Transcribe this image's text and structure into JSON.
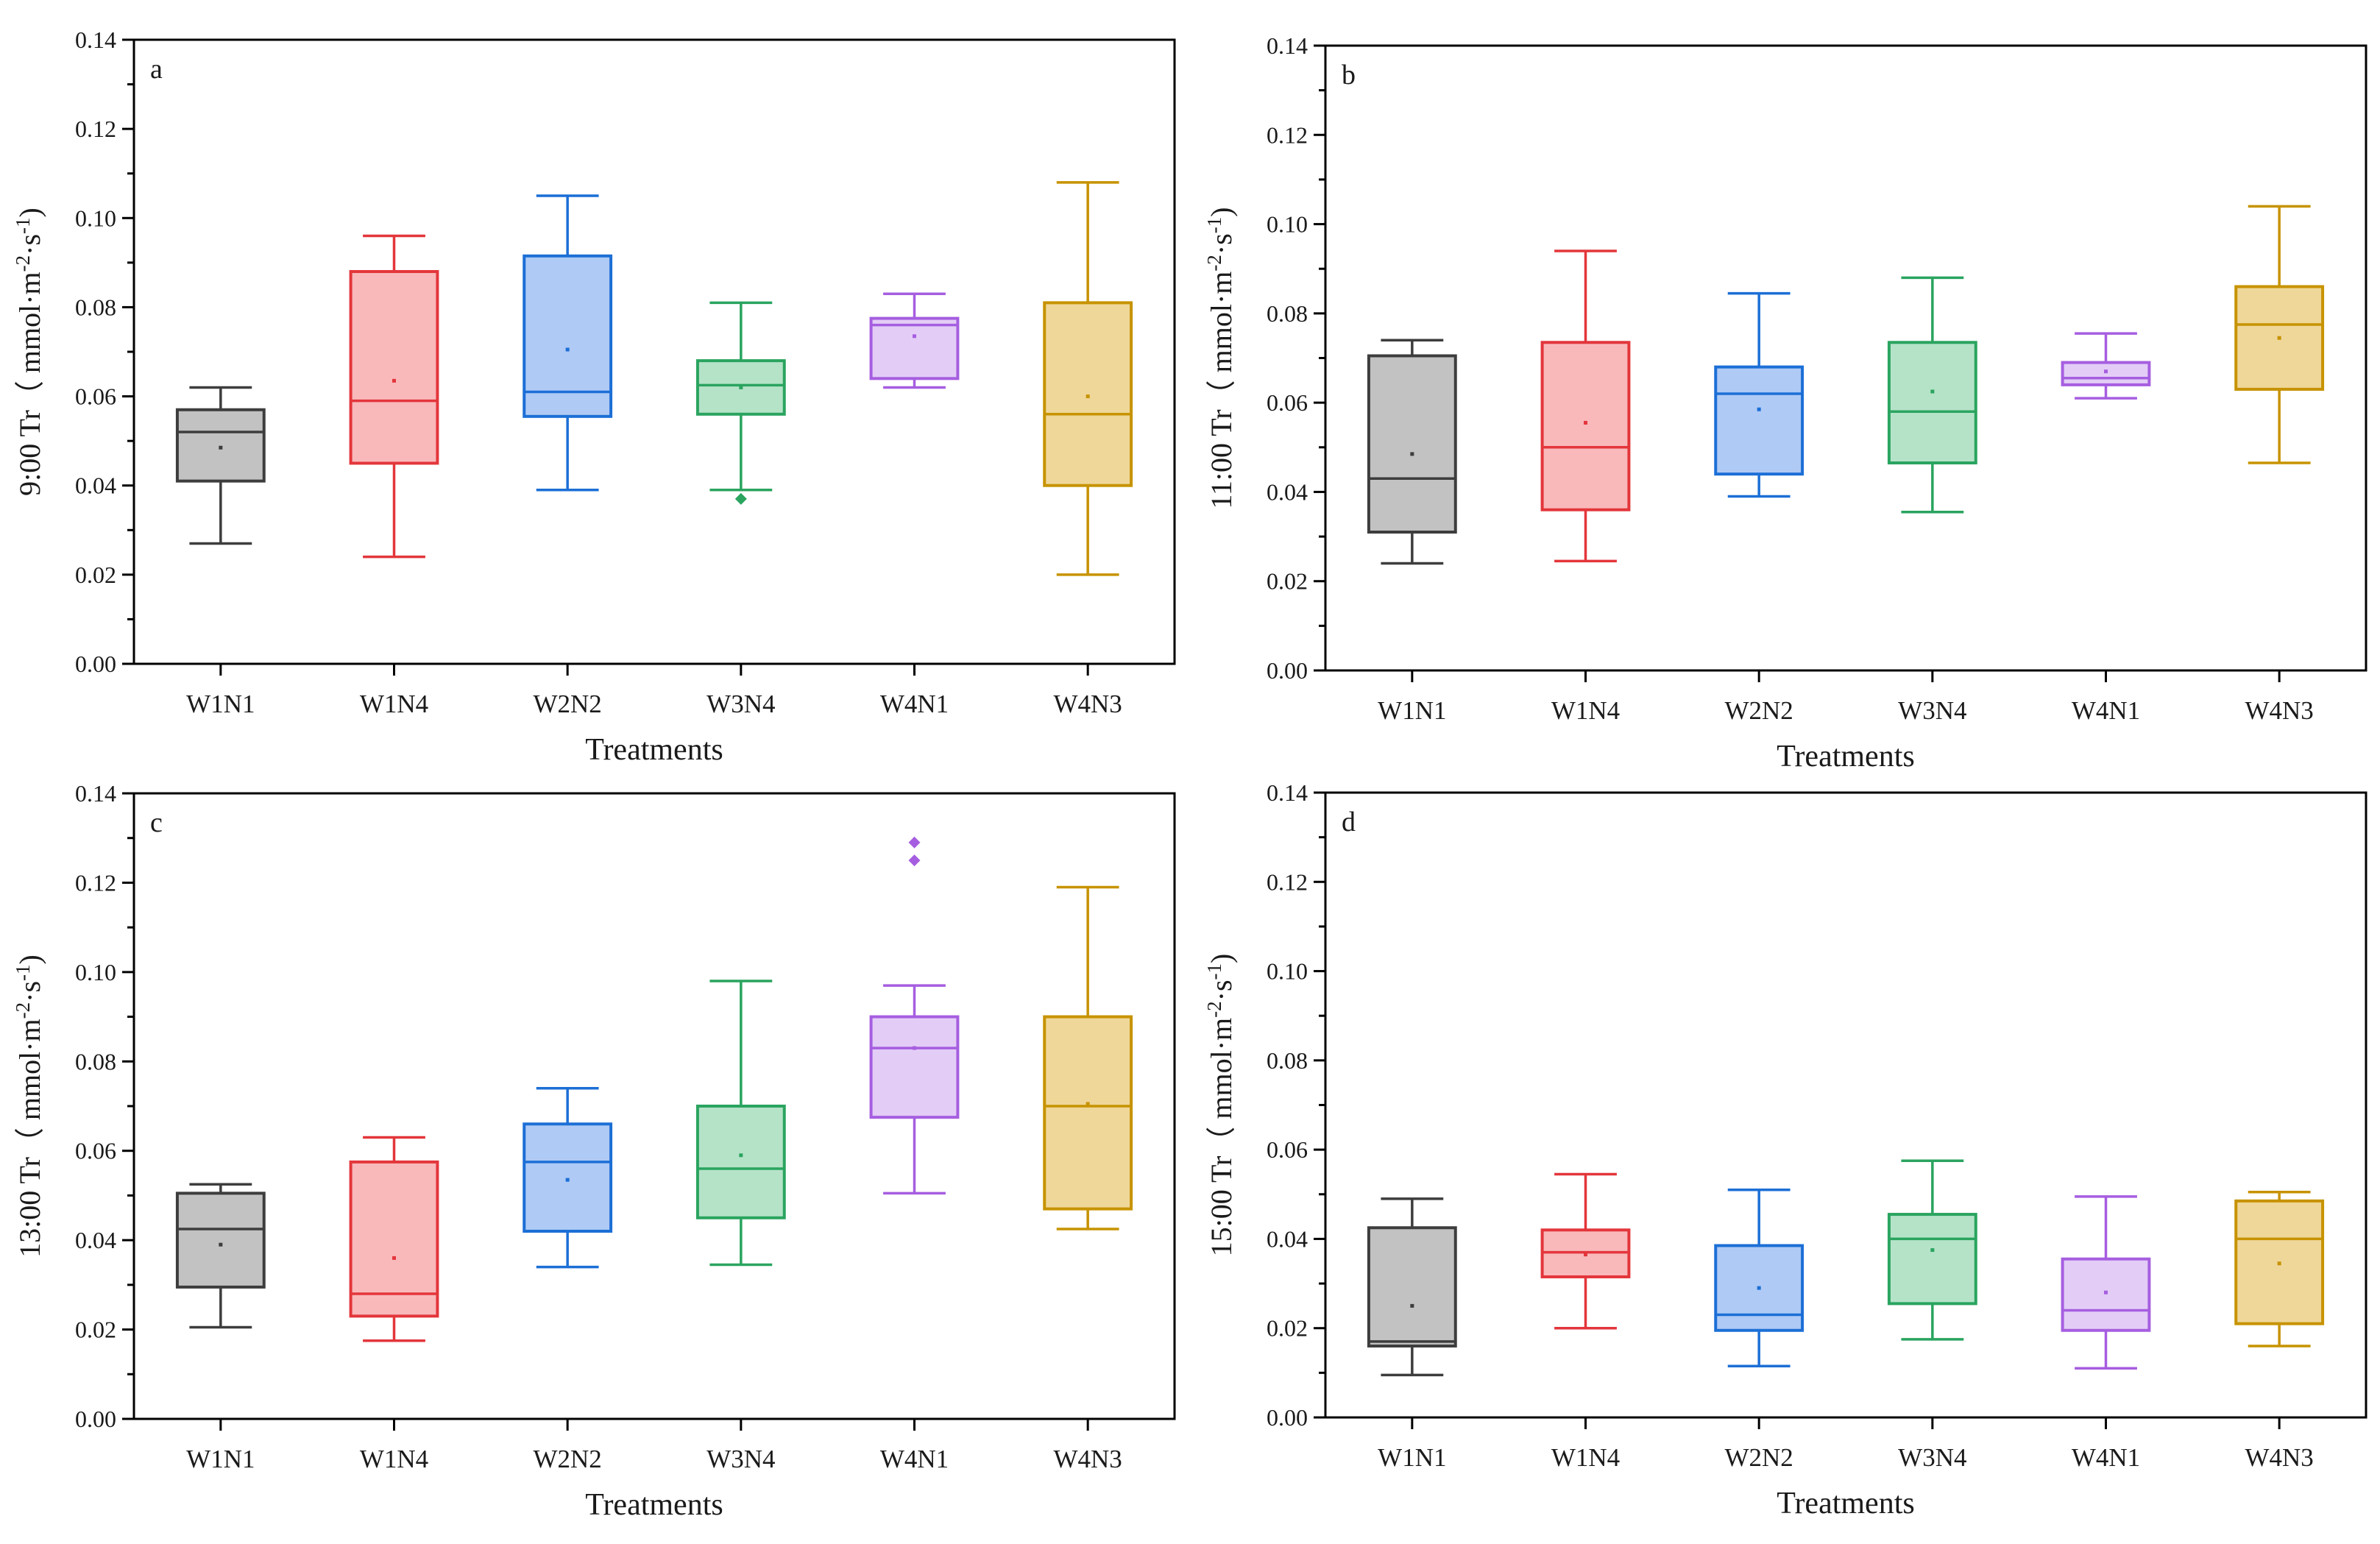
{
  "figure": {
    "panel_order": [
      "a",
      "b",
      "c",
      "d"
    ],
    "colors": {
      "W1N1": {
        "stroke": "#3d3d3d",
        "fill": "#c2c2c2"
      },
      "W1N4": {
        "stroke": "#e3363b",
        "fill": "#f9b9bb"
      },
      "W2N2": {
        "stroke": "#1c6fd6",
        "fill": "#afcaf5"
      },
      "W3N4": {
        "stroke": "#2aa45f",
        "fill": "#b5e3c8"
      },
      "W4N1": {
        "stroke": "#a65ee0",
        "fill": "#e3cdf6"
      },
      "W4N3": {
        "stroke": "#c79300",
        "fill": "#efd79a"
      }
    }
  },
  "chart_data": [
    {
      "type": "box",
      "panel_label": "a",
      "title": "",
      "xlabel": "Treatments",
      "ylabel_main": "9:00 Tr（ mmol·m",
      "ylabel_sup1": "-2",
      "ylabel_mid": "·s",
      "ylabel_sup2": "-1",
      "ylabel_end": ")",
      "ylim": [
        0,
        0.14
      ],
      "yticks": [
        "0.00",
        "0.02",
        "0.04",
        "0.06",
        "0.08",
        "0.10",
        "0.12",
        "0.14"
      ],
      "categories": [
        "W1N1",
        "W1N4",
        "W2N2",
        "W3N4",
        "W4N1",
        "W4N3"
      ],
      "boxes": [
        {
          "min": 0.027,
          "q1": 0.041,
          "median": 0.052,
          "q3": 0.057,
          "max": 0.062,
          "mean": 0.0485,
          "outliers": []
        },
        {
          "min": 0.024,
          "q1": 0.045,
          "median": 0.059,
          "q3": 0.088,
          "max": 0.096,
          "mean": 0.0635,
          "outliers": []
        },
        {
          "min": 0.039,
          "q1": 0.0555,
          "median": 0.061,
          "q3": 0.0915,
          "max": 0.105,
          "mean": 0.0705,
          "outliers": []
        },
        {
          "min": 0.039,
          "q1": 0.056,
          "median": 0.0625,
          "q3": 0.068,
          "max": 0.081,
          "mean": 0.062,
          "outliers": [
            0.037
          ]
        },
        {
          "min": 0.062,
          "q1": 0.064,
          "median": 0.076,
          "q3": 0.0775,
          "max": 0.083,
          "mean": 0.0735,
          "outliers": []
        },
        {
          "min": 0.02,
          "q1": 0.04,
          "median": 0.056,
          "q3": 0.081,
          "max": 0.108,
          "mean": 0.06,
          "outliers": []
        }
      ]
    },
    {
      "type": "box",
      "panel_label": "b",
      "title": "",
      "xlabel": "Treatments",
      "ylabel_main": "11:00 Tr（ mmol·m",
      "ylabel_sup1": "-2",
      "ylabel_mid": "·s",
      "ylabel_sup2": "-1",
      "ylabel_end": ")",
      "ylim": [
        0,
        0.14
      ],
      "yticks": [
        "0.00",
        "0.02",
        "0.04",
        "0.06",
        "0.08",
        "0.10",
        "0.12",
        "0.14"
      ],
      "categories": [
        "W1N1",
        "W1N4",
        "W2N2",
        "W3N4",
        "W4N1",
        "W4N3"
      ],
      "boxes": [
        {
          "min": 0.024,
          "q1": 0.031,
          "median": 0.043,
          "q3": 0.0705,
          "max": 0.074,
          "mean": 0.0485,
          "outliers": []
        },
        {
          "min": 0.0245,
          "q1": 0.036,
          "median": 0.05,
          "q3": 0.0735,
          "max": 0.094,
          "mean": 0.0555,
          "outliers": []
        },
        {
          "min": 0.039,
          "q1": 0.044,
          "median": 0.062,
          "q3": 0.068,
          "max": 0.0845,
          "mean": 0.0585,
          "outliers": []
        },
        {
          "min": 0.0355,
          "q1": 0.0465,
          "median": 0.058,
          "q3": 0.0735,
          "max": 0.088,
          "mean": 0.0625,
          "outliers": []
        },
        {
          "min": 0.061,
          "q1": 0.064,
          "median": 0.0655,
          "q3": 0.069,
          "max": 0.0755,
          "mean": 0.067,
          "outliers": []
        },
        {
          "min": 0.0465,
          "q1": 0.063,
          "median": 0.0775,
          "q3": 0.086,
          "max": 0.104,
          "mean": 0.0745,
          "outliers": []
        }
      ]
    },
    {
      "type": "box",
      "panel_label": "c",
      "title": "",
      "xlabel": "Treatments",
      "ylabel_main": "13:00 Tr（ mmol·m",
      "ylabel_sup1": "-2",
      "ylabel_mid": "·s",
      "ylabel_sup2": "-1",
      "ylabel_end": ")",
      "ylim": [
        0,
        0.14
      ],
      "yticks": [
        "0.00",
        "0.02",
        "0.04",
        "0.06",
        "0.08",
        "0.10",
        "0.12",
        "0.14"
      ],
      "categories": [
        "W1N1",
        "W1N4",
        "W2N2",
        "W3N4",
        "W4N1",
        "W4N3"
      ],
      "boxes": [
        {
          "min": 0.0205,
          "q1": 0.0295,
          "median": 0.0425,
          "q3": 0.0505,
          "max": 0.0525,
          "mean": 0.039,
          "outliers": []
        },
        {
          "min": 0.0175,
          "q1": 0.023,
          "median": 0.028,
          "q3": 0.0575,
          "max": 0.063,
          "mean": 0.036,
          "outliers": []
        },
        {
          "min": 0.034,
          "q1": 0.042,
          "median": 0.0575,
          "q3": 0.066,
          "max": 0.074,
          "mean": 0.0535,
          "outliers": []
        },
        {
          "min": 0.0345,
          "q1": 0.045,
          "median": 0.056,
          "q3": 0.07,
          "max": 0.098,
          "mean": 0.059,
          "outliers": []
        },
        {
          "min": 0.0505,
          "q1": 0.0675,
          "median": 0.083,
          "q3": 0.09,
          "max": 0.097,
          "mean": 0.083,
          "outliers": [
            0.125,
            0.129
          ]
        },
        {
          "min": 0.0425,
          "q1": 0.047,
          "median": 0.07,
          "q3": 0.09,
          "max": 0.119,
          "mean": 0.0705,
          "outliers": []
        }
      ]
    },
    {
      "type": "box",
      "panel_label": "d",
      "title": "",
      "xlabel": "Treatments",
      "ylabel_main": "15:00 Tr（ mmol·m",
      "ylabel_sup1": "-2",
      "ylabel_mid": "·s",
      "ylabel_sup2": "-1",
      "ylabel_end": ")",
      "ylim": [
        0,
        0.14
      ],
      "yticks": [
        "0.00",
        "0.02",
        "0.04",
        "0.06",
        "0.08",
        "0.10",
        "0.12",
        "0.14"
      ],
      "categories": [
        "W1N1",
        "W1N4",
        "W2N2",
        "W3N4",
        "W4N1",
        "W4N3"
      ],
      "boxes": [
        {
          "min": 0.0095,
          "q1": 0.016,
          "median": 0.017,
          "q3": 0.0425,
          "max": 0.049,
          "mean": 0.025,
          "outliers": []
        },
        {
          "min": 0.02,
          "q1": 0.0315,
          "median": 0.037,
          "q3": 0.042,
          "max": 0.0545,
          "mean": 0.0365,
          "outliers": []
        },
        {
          "min": 0.0115,
          "q1": 0.0195,
          "median": 0.023,
          "q3": 0.0385,
          "max": 0.051,
          "mean": 0.029,
          "outliers": []
        },
        {
          "min": 0.0175,
          "q1": 0.0255,
          "median": 0.04,
          "q3": 0.0455,
          "max": 0.0575,
          "mean": 0.0375,
          "outliers": []
        },
        {
          "min": 0.011,
          "q1": 0.0195,
          "median": 0.024,
          "q3": 0.0355,
          "max": 0.0495,
          "mean": 0.028,
          "outliers": []
        },
        {
          "min": 0.016,
          "q1": 0.021,
          "median": 0.04,
          "q3": 0.0485,
          "max": 0.0505,
          "mean": 0.0345,
          "outliers": []
        }
      ]
    }
  ]
}
